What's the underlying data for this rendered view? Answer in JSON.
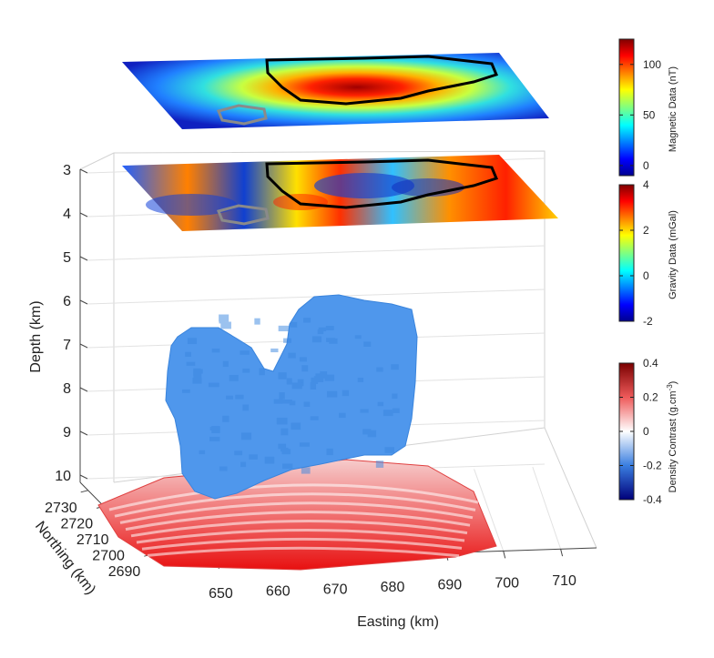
{
  "chart_data": {
    "type": "3d-volume",
    "title": "",
    "axes": {
      "depth": {
        "label": "Depth (km)",
        "ticks": [
          "3",
          "4",
          "5",
          "6",
          "7",
          "8",
          "9",
          "10"
        ],
        "range": [
          3,
          10
        ]
      },
      "easting": {
        "label": "Easting (km)",
        "ticks": [
          "650",
          "660",
          "670",
          "680",
          "690",
          "700",
          "710"
        ],
        "range": [
          645,
          715
        ]
      },
      "northing": {
        "label": "Northing (km)",
        "ticks": [
          "2690",
          "2700",
          "2710",
          "2720",
          "2730"
        ],
        "range": [
          2685,
          2735
        ]
      }
    },
    "colorbars": [
      {
        "name": "magnetic",
        "label": "Magnetic Data (nT)",
        "ticks": [
          "100",
          "50",
          "0"
        ],
        "range": [
          -10,
          125
        ],
        "colormap": "jet"
      },
      {
        "name": "gravity",
        "label": "Gravity Data (mGal)",
        "ticks": [
          "4",
          "2",
          "0",
          "-2"
        ],
        "range": [
          -2,
          4
        ],
        "colormap": "jet"
      },
      {
        "name": "density",
        "label": "Density Contrast (g.cm",
        "label_sup": "-3",
        "label_close": ")",
        "ticks": [
          "0.4",
          "0.2",
          "0",
          "-0.2",
          "-0.4"
        ],
        "range": [
          -0.4,
          0.4
        ],
        "colormap": "blue-white-red"
      }
    ],
    "bodies": [
      {
        "name": "negative-density-body",
        "density_contrast": -0.2,
        "color": "#4a94ea"
      },
      {
        "name": "positive-density-body",
        "density_contrast": 0.3,
        "color": "#e82020"
      }
    ],
    "layers": [
      {
        "name": "magnetic-map",
        "colormap": "jet"
      },
      {
        "name": "gravity-map",
        "colormap": "jet"
      }
    ],
    "grid": true
  }
}
